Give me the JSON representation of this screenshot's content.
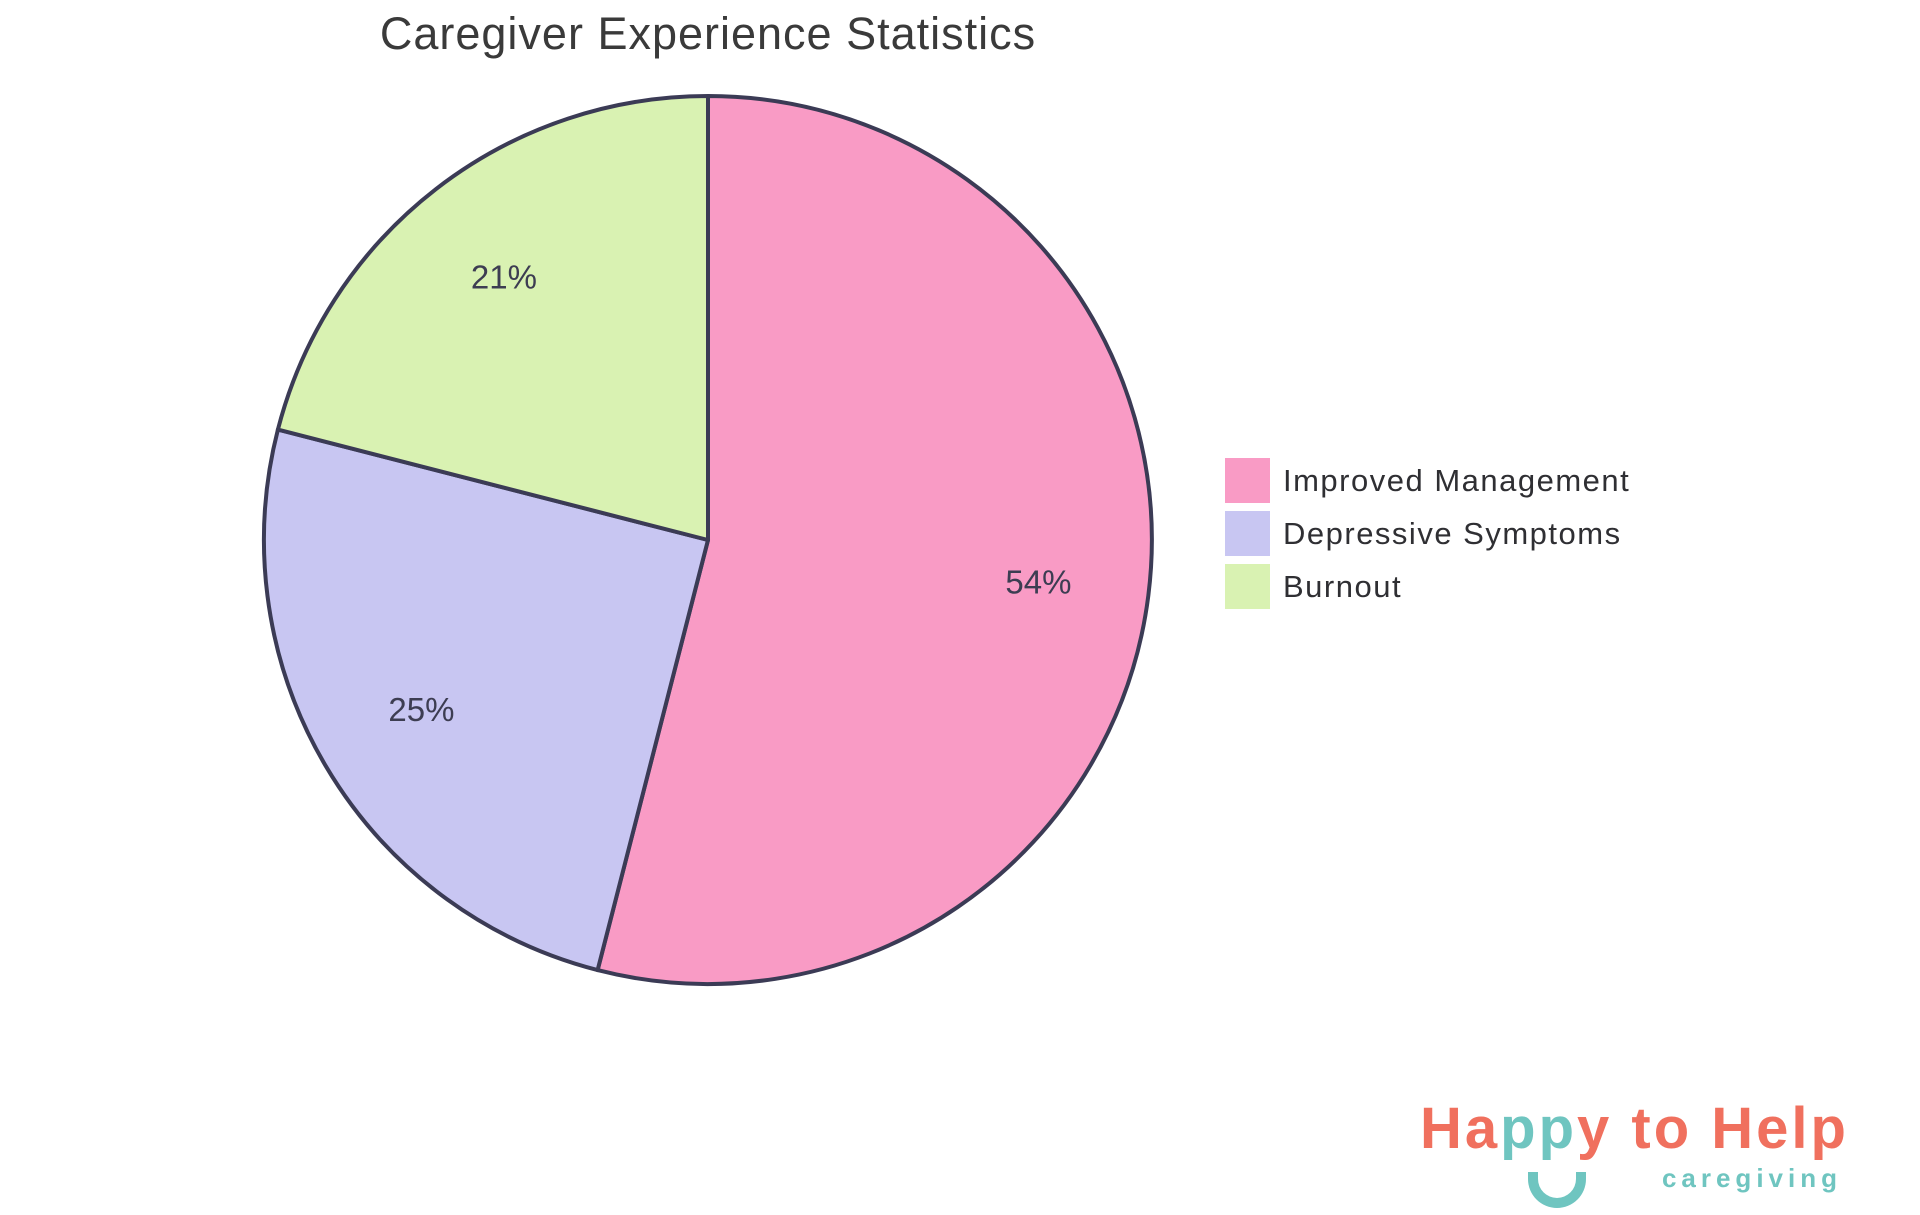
{
  "chart_data": {
    "type": "pie",
    "title": "Caregiver Experience Statistics",
    "categories": [
      "Improved Management",
      "Depressive Symptoms",
      "Burnout"
    ],
    "values": [
      54,
      25,
      21
    ],
    "slice_labels": [
      "54%",
      "25%",
      "21%"
    ],
    "colors": [
      "#F99BC5",
      "#C8C6F2",
      "#D9F2B2"
    ],
    "outline_color": "#3B3B55",
    "percent_label_color": "#3D3D52",
    "title_color": "#3A3A3A",
    "start_angle": "top",
    "direction": "clockwise",
    "legend_position": "right",
    "grid": "off"
  },
  "branding": {
    "logo_part_1": "Ha",
    "logo_part_2": "pp",
    "logo_part_3": "y to Help",
    "tagline": "caregiving",
    "coral_color": "#F0705E",
    "teal_color": "#6FC5C0"
  }
}
